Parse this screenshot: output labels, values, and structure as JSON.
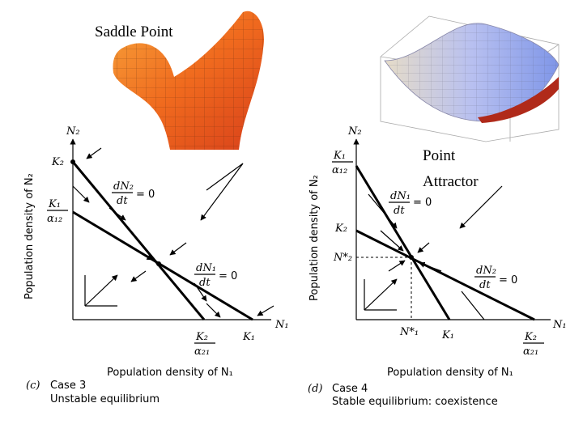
{
  "saddle_label": "Saddle Point",
  "attractor_label": [
    "Point",
    "Attractor"
  ],
  "panel_c": {
    "y_axis": "N₂",
    "x_axis": "N₁",
    "y_label": "Population density of N₂",
    "x_label": "Population density of N₁",
    "k2": "K₂",
    "k1_over_a12": {
      "num": "K₁",
      "den": "α₁₂"
    },
    "k2_over_a21": {
      "num": "K₂",
      "den": "α₂₁"
    },
    "k1": "K₁",
    "isocline_n2": {
      "num": "dN₂",
      "den": "dt",
      "eq": "= 0"
    },
    "isocline_n1": {
      "num": "dN₁",
      "den": "dt",
      "eq": "= 0"
    },
    "tag": "(c)",
    "case": "Case 3",
    "caption": "Unstable equilibrium"
  },
  "panel_d": {
    "y_axis": "N₂",
    "x_axis": "N₁",
    "y_label": "Population density of N₂",
    "x_label": "Population density of N₁",
    "k1_over_a12": {
      "num": "K₁",
      "den": "α₁₂"
    },
    "k2": "K₂",
    "n2_star": "N*₂",
    "n1_star": "N*₁",
    "k1": "K₁",
    "k2_over_a21": {
      "num": "K₂",
      "den": "α₂₁"
    },
    "isocline_n1": {
      "num": "dN₁",
      "den": "dt",
      "eq": "= 0"
    },
    "isocline_n2": {
      "num": "dN₂",
      "den": "dt",
      "eq": "= 0"
    },
    "tag": "(d)",
    "case": "Case 4",
    "caption": "Stable equilibrium:  coexistence"
  }
}
